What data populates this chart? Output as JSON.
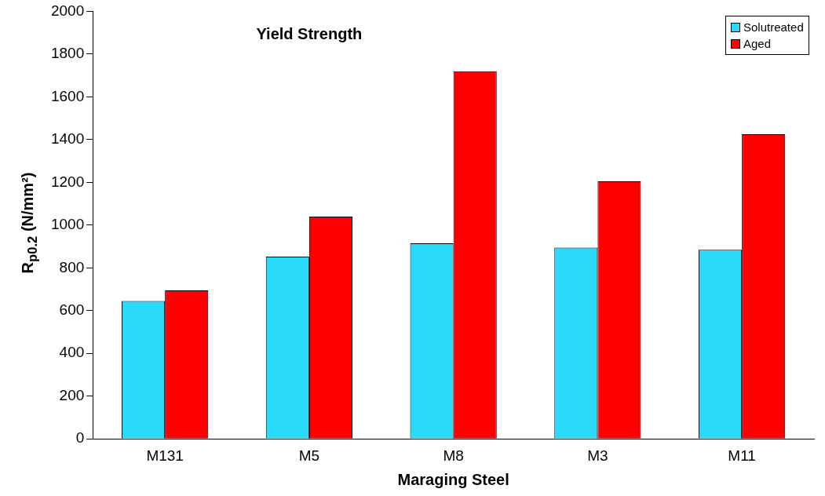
{
  "chart_data": {
    "type": "bar",
    "title": "Yield Strength",
    "xlabel": "Maraging Steel",
    "ylabel": "R$_{p0.2}$ (N/mm²)",
    "categories": [
      "M131",
      "M5",
      "M8",
      "M3",
      "M11"
    ],
    "series": [
      {
        "name": "Solutreated",
        "color": "#29d9f9",
        "values": [
          645,
          852,
          915,
          895,
          885
        ]
      },
      {
        "name": "Aged",
        "color": "#ff0000",
        "values": [
          695,
          1040,
          1720,
          1205,
          1425
        ]
      }
    ],
    "ylim": [
      0,
      2000
    ],
    "yticks": [
      0,
      200,
      400,
      600,
      800,
      1000,
      1200,
      1400,
      1600,
      1800,
      2000
    ],
    "grid": false,
    "legend": "top right"
  }
}
